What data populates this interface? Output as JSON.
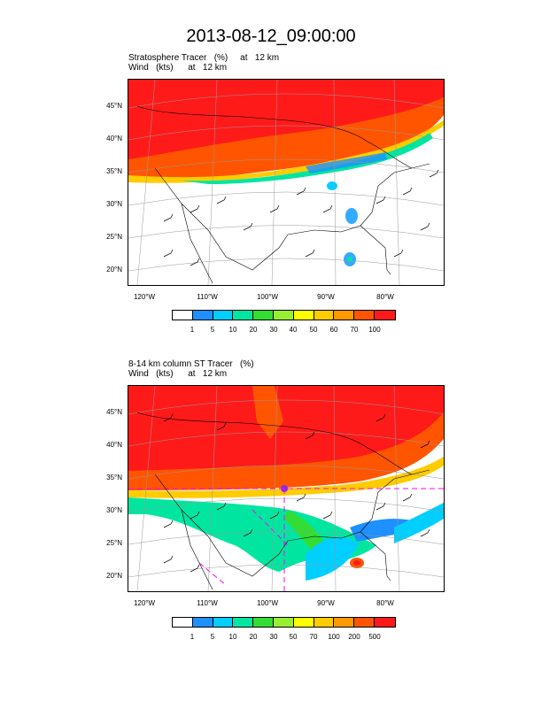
{
  "title": "2013-08-12_09:00:00",
  "panels": [
    {
      "line1": "Stratosphere Tracer   (%)     at   12 km",
      "line2": "Wind   (kts)      at   12 km",
      "lat_labels": [
        "45°N",
        "40°N",
        "35°N",
        "30°N",
        "25°N",
        "20°N"
      ],
      "lon_labels": [
        "120°W",
        "110°W",
        "100°W",
        "90°W",
        "80°W"
      ],
      "colorbar_labels": [
        "1",
        "5",
        "10",
        "20",
        "30",
        "40",
        "50",
        "60",
        "70",
        "100"
      ],
      "colors": [
        "#ffffff",
        "#1e90ff",
        "#00cfff",
        "#00e6a0",
        "#33dd33",
        "#99ee33",
        "#ffff00",
        "#ffcc00",
        "#ff9900",
        "#ff5500",
        "#ff1a1a"
      ]
    },
    {
      "line1": "8-14 km column ST Tracer   (%)",
      "line2": "Wind   (kts)      at   12 km",
      "lat_labels": [
        "45°N",
        "40°N",
        "35°N",
        "30°N",
        "25°N",
        "20°N"
      ],
      "lon_labels": [
        "120°W",
        "110°W",
        "100°W",
        "90°W",
        "80°W"
      ],
      "colorbar_labels": [
        "1",
        "5",
        "10",
        "20",
        "30",
        "50",
        "70",
        "100",
        "200",
        "500"
      ],
      "colors": [
        "#ffffff",
        "#1e90ff",
        "#00cfff",
        "#00e6a0",
        "#33dd33",
        "#99ee33",
        "#ffff00",
        "#ffcc00",
        "#ff9900",
        "#ff5500",
        "#ff1a1a"
      ]
    }
  ]
}
